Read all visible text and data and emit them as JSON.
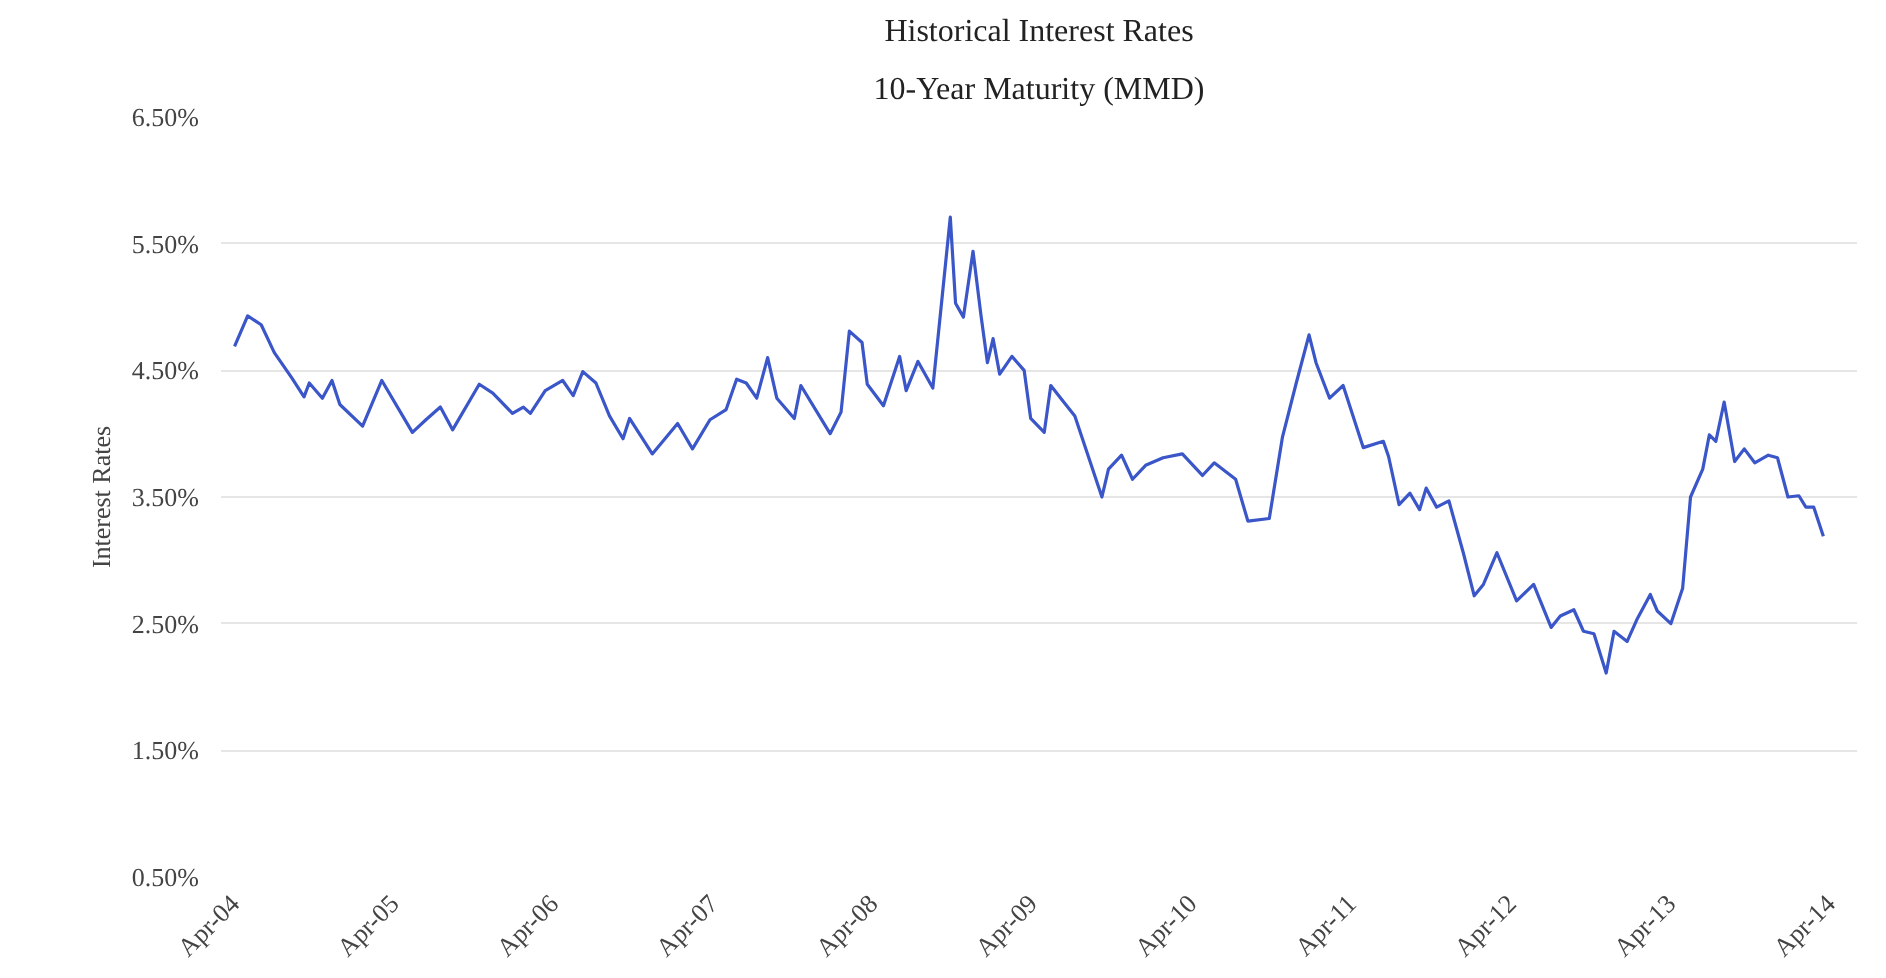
{
  "chart_data": {
    "type": "line",
    "title": "Historical Interest Rates",
    "subtitle": "10-Year Maturity (MMD)",
    "ylabel": "Interest Rates",
    "xlim": [
      "2004-03-01",
      "2014-06-01"
    ],
    "ylim": [
      0.5,
      6.5
    ],
    "xticks": [
      {
        "value": "2004-04-01",
        "label": "Apr-04"
      },
      {
        "value": "2005-04-01",
        "label": "Apr-05"
      },
      {
        "value": "2006-04-01",
        "label": "Apr-06"
      },
      {
        "value": "2007-04-01",
        "label": "Apr-07"
      },
      {
        "value": "2008-04-01",
        "label": "Apr-08"
      },
      {
        "value": "2009-04-01",
        "label": "Apr-09"
      },
      {
        "value": "2010-04-01",
        "label": "Apr-10"
      },
      {
        "value": "2011-04-01",
        "label": "Apr-11"
      },
      {
        "value": "2012-04-01",
        "label": "Apr-12"
      },
      {
        "value": "2013-04-01",
        "label": "Apr-13"
      },
      {
        "value": "2014-04-01",
        "label": "Apr-14"
      }
    ],
    "yticks": [
      {
        "value": 0.5,
        "label": "0.50%"
      },
      {
        "value": 1.5,
        "label": "1.50%"
      },
      {
        "value": 2.5,
        "label": "2.50%"
      },
      {
        "value": 3.5,
        "label": "3.50%"
      },
      {
        "value": 4.5,
        "label": "4.50%"
      },
      {
        "value": 5.5,
        "label": "5.50%"
      },
      {
        "value": 6.5,
        "label": "6.50%"
      }
    ],
    "grid": "y",
    "marker": "none",
    "line_style": "solid",
    "series": [
      {
        "color": "#3a56c8",
        "x": [
          "2004-04-01",
          "2004-05-01",
          "2004-06-01",
          "2004-07-01",
          "2004-08-10",
          "2004-09-07",
          "2004-09-19",
          "2004-10-19",
          "2004-11-10",
          "2004-11-28",
          "2005-01-19",
          "2005-03-04",
          "2005-05-13",
          "2005-06-13",
          "2005-07-16",
          "2005-08-13",
          "2005-10-13",
          "2005-11-13",
          "2005-12-28",
          "2006-01-22",
          "2006-02-07",
          "2006-03-13",
          "2006-04-22",
          "2006-05-16",
          "2006-06-07",
          "2006-07-07",
          "2006-08-07",
          "2006-09-07",
          "2006-09-22",
          "2006-11-13",
          "2007-01-10",
          "2007-02-13",
          "2007-03-25",
          "2007-05-01",
          "2007-05-25",
          "2007-06-16",
          "2007-07-10",
          "2007-08-04",
          "2007-08-25",
          "2007-10-04",
          "2007-10-19",
          "2007-12-25",
          "2008-01-19",
          "2008-02-07",
          "2008-03-07",
          "2008-03-19",
          "2008-04-25",
          "2008-06-01",
          "2008-06-16",
          "2008-07-13",
          "2008-08-16",
          "2008-09-04",
          "2008-09-25",
          "2008-10-07",
          "2008-10-25",
          "2008-11-16",
          "2008-12-04",
          "2008-12-19",
          "2009-01-01",
          "2009-01-16",
          "2009-02-13",
          "2009-03-13",
          "2009-03-28",
          "2009-04-28",
          "2009-05-13",
          "2009-06-07",
          "2009-07-07",
          "2009-09-07",
          "2009-09-22",
          "2009-10-22",
          "2009-11-16",
          "2009-12-16",
          "2010-01-25",
          "2010-03-10",
          "2010-04-25",
          "2010-05-22",
          "2010-07-10",
          "2010-08-07",
          "2010-09-25",
          "2010-10-25",
          "2010-11-25",
          "2010-12-25",
          "2011-01-10",
          "2011-02-10",
          "2011-03-13",
          "2011-04-28",
          "2011-06-13",
          "2011-06-25",
          "2011-07-19",
          "2011-08-13",
          "2011-09-04",
          "2011-09-19",
          "2011-10-13",
          "2011-11-10",
          "2011-12-13",
          "2012-01-07",
          "2012-01-28",
          "2012-02-28",
          "2012-04-13",
          "2012-05-22",
          "2012-07-01",
          "2012-07-22",
          "2012-08-22",
          "2012-09-13",
          "2012-10-07",
          "2012-11-04",
          "2012-11-22",
          "2012-12-22",
          "2013-01-13",
          "2013-02-13",
          "2013-03-01",
          "2013-04-01",
          "2013-04-28",
          "2013-05-16",
          "2013-06-13",
          "2013-06-28",
          "2013-07-13",
          "2013-08-01",
          "2013-08-25",
          "2013-09-16",
          "2013-10-10",
          "2013-11-10",
          "2013-12-01",
          "2013-12-25",
          "2014-01-19",
          "2014-02-04",
          "2014-02-22",
          "2014-03-16"
        ],
        "values": [
          4.69,
          4.93,
          4.86,
          4.64,
          4.44,
          4.29,
          4.4,
          4.28,
          4.42,
          4.23,
          4.06,
          4.42,
          4.01,
          4.11,
          4.21,
          4.03,
          4.39,
          4.32,
          4.16,
          4.21,
          4.16,
          4.34,
          4.42,
          4.3,
          4.49,
          4.4,
          4.14,
          3.96,
          4.12,
          3.84,
          4.08,
          3.88,
          4.11,
          4.19,
          4.43,
          4.4,
          4.28,
          4.6,
          4.28,
          4.12,
          4.38,
          4.0,
          4.17,
          4.81,
          4.72,
          4.39,
          4.22,
          4.61,
          4.34,
          4.57,
          4.36,
          5.0,
          5.71,
          5.03,
          4.92,
          5.44,
          4.94,
          4.56,
          4.75,
          4.47,
          4.61,
          4.5,
          4.12,
          4.01,
          4.38,
          4.27,
          4.14,
          3.5,
          3.72,
          3.83,
          3.64,
          3.75,
          3.81,
          3.84,
          3.67,
          3.77,
          3.64,
          3.31,
          3.33,
          3.97,
          4.39,
          4.78,
          4.56,
          4.28,
          4.38,
          3.89,
          3.94,
          3.82,
          3.44,
          3.53,
          3.4,
          3.57,
          3.42,
          3.47,
          3.06,
          2.72,
          2.81,
          3.06,
          2.68,
          2.81,
          2.47,
          2.56,
          2.61,
          2.44,
          2.42,
          2.11,
          2.44,
          2.36,
          2.53,
          2.73,
          2.6,
          2.5,
          2.78,
          3.5,
          3.72,
          3.99,
          3.94,
          4.25,
          3.78,
          3.88,
          3.77,
          3.83,
          3.81,
          3.5,
          3.51,
          3.42,
          3.42,
          3.19
        ]
      }
    ]
  }
}
